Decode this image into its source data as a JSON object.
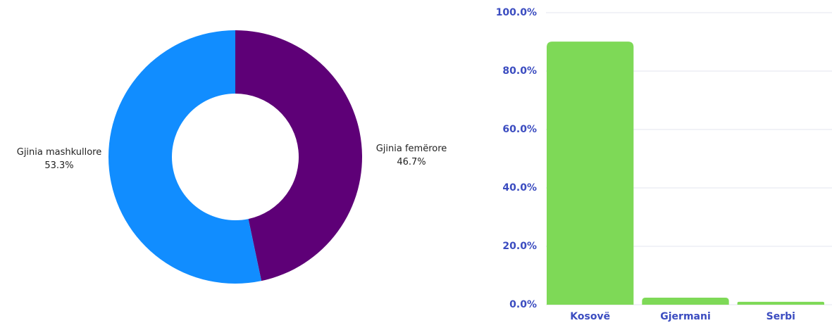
{
  "chart_data": [
    {
      "type": "pie",
      "categories": [
        "Gjinia femërore",
        "Gjinia mashkullore"
      ],
      "values": [
        46.7,
        53.3
      ],
      "value_labels": [
        "46.7%",
        "53.3%"
      ],
      "colors": [
        "#5e0077",
        "#118dff"
      ]
    },
    {
      "type": "bar",
      "categories": [
        "Kosovë",
        "Gjermani",
        "Serbi"
      ],
      "values": [
        90.1,
        2.4,
        1.0
      ],
      "color": "#7ed957",
      "ylim": [
        0,
        100
      ],
      "yticks": [
        {
          "value": 0,
          "label": "0.0%"
        },
        {
          "value": 20,
          "label": "20.0%"
        },
        {
          "value": 40,
          "label": "40.0%"
        },
        {
          "value": 60,
          "label": "60.0%"
        },
        {
          "value": 80,
          "label": "80.0%"
        },
        {
          "value": 100,
          "label": "100.0%"
        }
      ],
      "grid": true
    }
  ]
}
